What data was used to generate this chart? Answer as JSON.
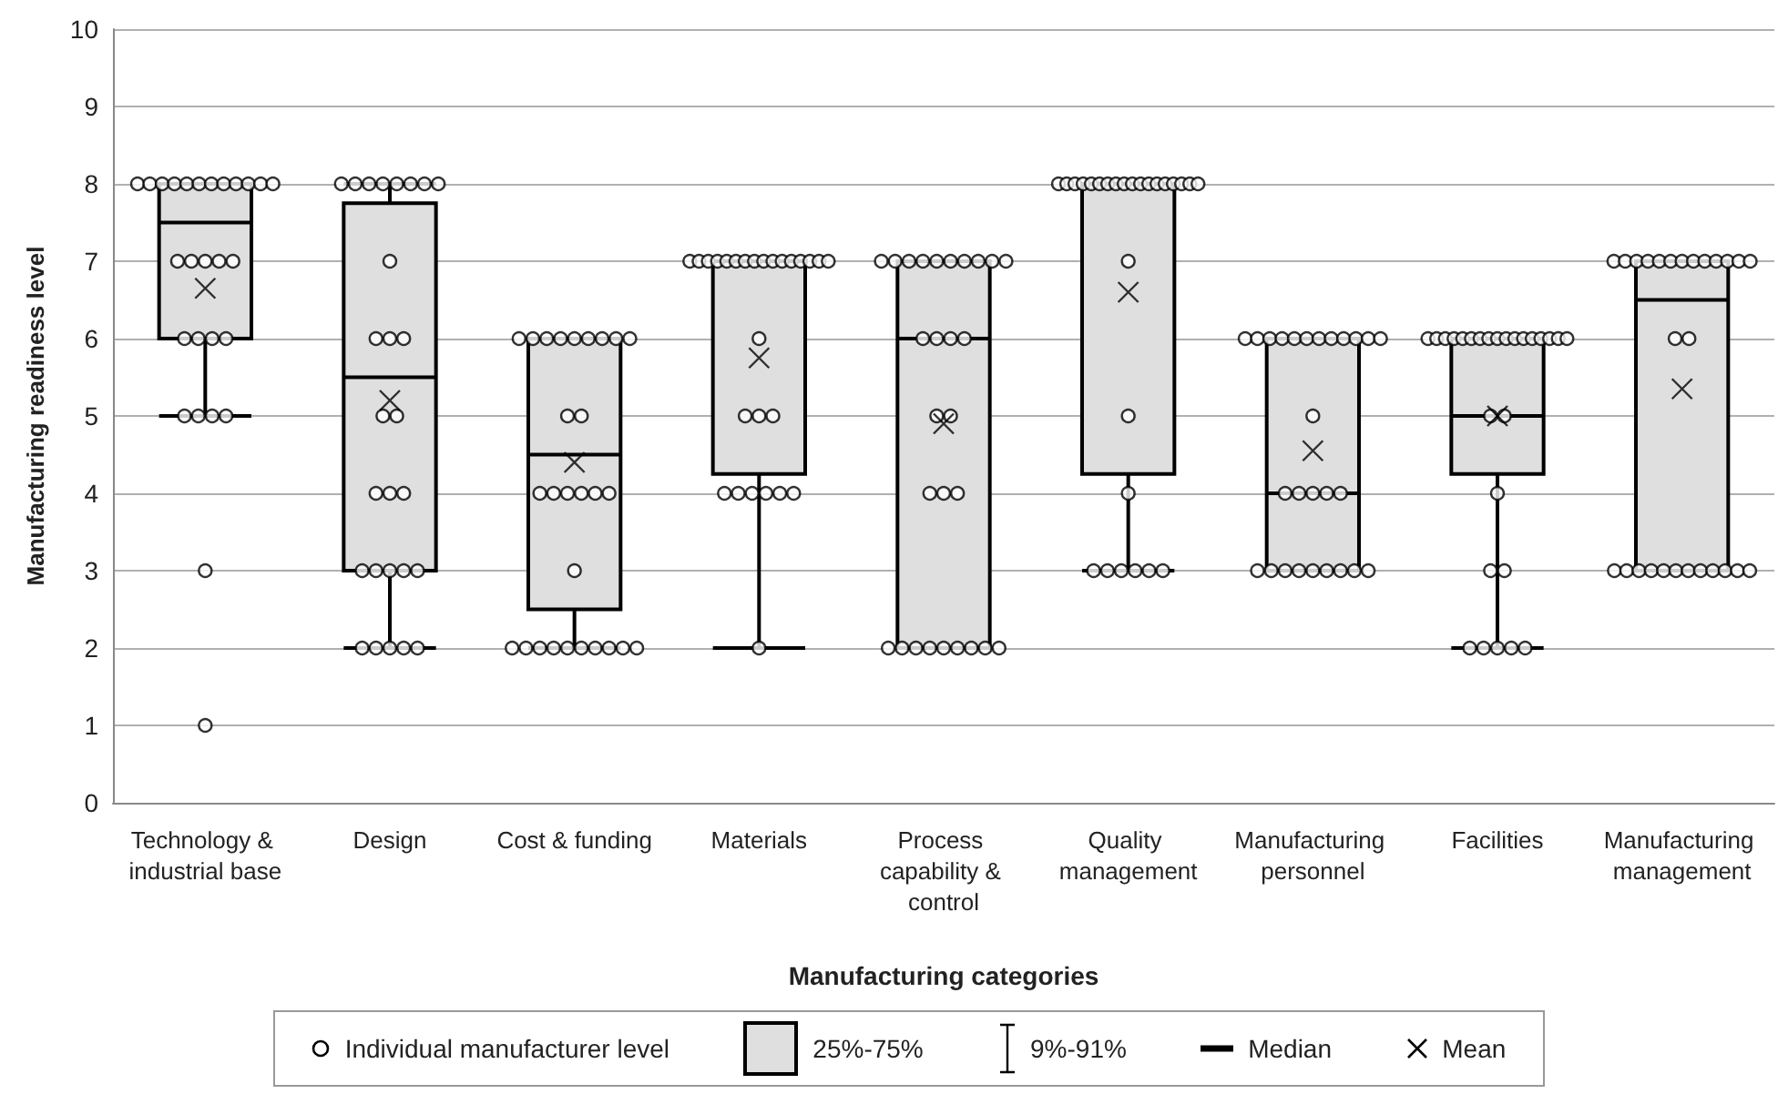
{
  "chart_data": {
    "type": "box",
    "xlabel": "Manufacturing categories",
    "ylabel": "Manufacturing readiness level",
    "categories": [
      "Technology & industrial base",
      "Design",
      "Cost & funding",
      "Materials",
      "Process capability & control",
      "Quality management",
      "Manufacturing personnel",
      "Facilities",
      "Manufacturing management"
    ],
    "ylim": [
      0,
      10
    ],
    "yticks": [
      0,
      1,
      2,
      3,
      4,
      5,
      6,
      7,
      8,
      9,
      10
    ],
    "grid": "y",
    "legend": "bottom",
    "annotations": [
      "9%-91%",
      "Median"
    ],
    "series": [
      {
        "type": "scatter",
        "name": "Individual manufacturer level",
        "color": "#ffffff",
        "marker": "circle",
        "x": [
          "Technology & industrial base",
          "Technology & industrial base",
          "Technology & industrial base",
          "Technology & industrial base",
          "Technology & industrial base",
          "Technology & industrial base",
          "Technology & industrial base",
          "Technology & industrial base",
          "Technology & industrial base",
          "Technology & industrial base",
          "Technology & industrial base",
          "Technology & industrial base",
          "Technology & industrial base",
          "Technology & industrial base",
          "Technology & industrial base",
          "Technology & industrial base",
          "Technology & industrial base",
          "Technology & industrial base",
          "Technology & industrial base",
          "Technology & industrial base",
          "Technology & industrial base",
          "Technology & industrial base",
          "Technology & industrial base",
          "Technology & industrial base",
          "Technology & industrial base",
          "Technology & industrial base",
          "Technology & industrial base",
          "Design",
          "Design",
          "Design",
          "Design",
          "Design",
          "Design",
          "Design",
          "Design",
          "Design",
          "Design",
          "Design",
          "Design",
          "Design",
          "Design",
          "Design",
          "Design",
          "Design",
          "Design",
          "Design",
          "Design",
          "Design",
          "Design",
          "Design",
          "Design",
          "Design",
          "Design",
          "Design",
          "Cost & funding",
          "Cost & funding",
          "Cost & funding",
          "Cost & funding",
          "Cost & funding",
          "Cost & funding",
          "Cost & funding",
          "Cost & funding",
          "Cost & funding",
          "Cost & funding",
          "Cost & funding",
          "Cost & funding",
          "Cost & funding",
          "Cost & funding",
          "Cost & funding",
          "Cost & funding",
          "Cost & funding",
          "Cost & funding",
          "Cost & funding",
          "Cost & funding",
          "Cost & funding",
          "Cost & funding",
          "Cost & funding",
          "Cost & funding",
          "Cost & funding",
          "Cost & funding",
          "Cost & funding",
          "Cost & funding",
          "Materials",
          "Materials",
          "Materials",
          "Materials",
          "Materials",
          "Materials",
          "Materials",
          "Materials",
          "Materials",
          "Materials",
          "Materials",
          "Materials",
          "Materials",
          "Materials",
          "Materials",
          "Materials",
          "Materials",
          "Materials",
          "Materials",
          "Materials",
          "Materials",
          "Materials",
          "Materials",
          "Materials",
          "Materials",
          "Materials",
          "Materials",
          "Process capability & control",
          "Process capability & control",
          "Process capability & control",
          "Process capability & control",
          "Process capability & control",
          "Process capability & control",
          "Process capability & control",
          "Process capability & control",
          "Process capability & control",
          "Process capability & control",
          "Process capability & control",
          "Process capability & control",
          "Process capability & control",
          "Process capability & control",
          "Process capability & control",
          "Process capability & control",
          "Process capability & control",
          "Process capability & control",
          "Process capability & control",
          "Process capability & control",
          "Process capability & control",
          "Process capability & control",
          "Process capability & control",
          "Process capability & control",
          "Process capability & control",
          "Process capability & control",
          "Process capability & control",
          "Process capability & control",
          "Quality management",
          "Quality management",
          "Quality management",
          "Quality management",
          "Quality management",
          "Quality management",
          "Quality management",
          "Quality management",
          "Quality management",
          "Quality management",
          "Quality management",
          "Quality management",
          "Quality management",
          "Quality management",
          "Quality management",
          "Quality management",
          "Quality management",
          "Quality management",
          "Quality management",
          "Quality management",
          "Quality management",
          "Quality management",
          "Quality management",
          "Quality management",
          "Quality management",
          "Quality management",
          "Quality management",
          "Manufacturing personnel",
          "Manufacturing personnel",
          "Manufacturing personnel",
          "Manufacturing personnel",
          "Manufacturing personnel",
          "Manufacturing personnel",
          "Manufacturing personnel",
          "Manufacturing personnel",
          "Manufacturing personnel",
          "Manufacturing personnel",
          "Manufacturing personnel",
          "Manufacturing personnel",
          "Manufacturing personnel",
          "Manufacturing personnel",
          "Manufacturing personnel",
          "Manufacturing personnel",
          "Manufacturing personnel",
          "Manufacturing personnel",
          "Manufacturing personnel",
          "Manufacturing personnel",
          "Manufacturing personnel",
          "Manufacturing personnel",
          "Manufacturing personnel",
          "Manufacturing personnel",
          "Manufacturing personnel",
          "Manufacturing personnel",
          "Manufacturing personnel",
          "Facilities",
          "Facilities",
          "Facilities",
          "Facilities",
          "Facilities",
          "Facilities",
          "Facilities",
          "Facilities",
          "Facilities",
          "Facilities",
          "Facilities",
          "Facilities",
          "Facilities",
          "Facilities",
          "Facilities",
          "Facilities",
          "Facilities",
          "Facilities",
          "Facilities",
          "Facilities",
          "Facilities",
          "Facilities",
          "Facilities",
          "Facilities",
          "Facilities",
          "Facilities",
          "Facilities",
          "Manufacturing management",
          "Manufacturing management",
          "Manufacturing management",
          "Manufacturing management",
          "Manufacturing management",
          "Manufacturing management",
          "Manufacturing management",
          "Manufacturing management",
          "Manufacturing management",
          "Manufacturing management",
          "Manufacturing management",
          "Manufacturing management",
          "Manufacturing management",
          "Manufacturing management",
          "Manufacturing management",
          "Manufacturing management",
          "Manufacturing management",
          "Manufacturing management",
          "Manufacturing management",
          "Manufacturing management",
          "Manufacturing management",
          "Manufacturing management",
          "Manufacturing management",
          "Manufacturing management",
          "Manufacturing management",
          "Manufacturing management",
          "Manufacturing management"
        ],
        "values": [
          8,
          8,
          8,
          8,
          8,
          8,
          8,
          8,
          8,
          8,
          8,
          8,
          7,
          7,
          7,
          7,
          7,
          6,
          6,
          6,
          6,
          5,
          5,
          5,
          5,
          3,
          1,
          8,
          8,
          8,
          8,
          8,
          8,
          8,
          8,
          7,
          6,
          6,
          6,
          5,
          5,
          4,
          4,
          4,
          3,
          3,
          3,
          3,
          3,
          2,
          2,
          2,
          2,
          2,
          6,
          6,
          6,
          6,
          6,
          6,
          6,
          6,
          6,
          5,
          5,
          4,
          4,
          4,
          4,
          4,
          4,
          3,
          2,
          2,
          2,
          2,
          2,
          2,
          2,
          2,
          2,
          2,
          7,
          7,
          7,
          7,
          7,
          7,
          7,
          7,
          7,
          7,
          7,
          7,
          7,
          7,
          7,
          7,
          6,
          5,
          5,
          5,
          4,
          4,
          4,
          4,
          4,
          4,
          2,
          7,
          7,
          7,
          7,
          7,
          7,
          7,
          7,
          7,
          7,
          6,
          6,
          6,
          6,
          5,
          5,
          4,
          4,
          4,
          2,
          2,
          2,
          2,
          2,
          2,
          2,
          2,
          2,
          8,
          8,
          8,
          8,
          8,
          8,
          8,
          8,
          8,
          8,
          8,
          8,
          8,
          8,
          8,
          8,
          8,
          8,
          7,
          5,
          4,
          3,
          3,
          3,
          3,
          3,
          3,
          6,
          6,
          6,
          6,
          6,
          6,
          6,
          6,
          6,
          6,
          6,
          6,
          5,
          4,
          4,
          4,
          4,
          4,
          3,
          3,
          3,
          3,
          3,
          3,
          3,
          3,
          3,
          6,
          6,
          6,
          6,
          6,
          6,
          6,
          6,
          6,
          6,
          6,
          6,
          6,
          6,
          6,
          6,
          6,
          5,
          5,
          4,
          3,
          3,
          2,
          2,
          2,
          2,
          2,
          7,
          7,
          7,
          7,
          7,
          7,
          7,
          7,
          7,
          7,
          7,
          7,
          7,
          6,
          6,
          3,
          3,
          3,
          3,
          3,
          3,
          3,
          3,
          3,
          3,
          3,
          3
        ]
      },
      {
        "name": "25%-75%",
        "color": "#dfdfdf",
        "boxes": [
          {
            "low": 5,
            "q1": 6,
            "median": 7.5,
            "q3": 8,
            "high": 8
          },
          {
            "low": 2,
            "q1": 3,
            "median": 5.5,
            "q3": 7.75,
            "high": 8
          },
          {
            "low": 2,
            "q1": 2.5,
            "median": 4.5,
            "q3": 6,
            "high": 6
          },
          {
            "low": 2,
            "q1": 4.25,
            "median": 7,
            "q3": 7,
            "high": 7
          },
          {
            "low": 2,
            "q1": 2,
            "median": 6,
            "q3": 7,
            "high": 7
          },
          {
            "low": 3,
            "q1": 4.25,
            "median": 8,
            "q3": 8,
            "high": 8
          },
          {
            "low": 3,
            "q1": 3,
            "median": 4,
            "q3": 6,
            "high": 6
          },
          {
            "low": 2,
            "q1": 4.25,
            "median": 5,
            "q3": 6,
            "high": 6
          },
          {
            "low": 3,
            "q1": 3,
            "median": 6.5,
            "q3": 7,
            "high": 7
          }
        ]
      },
      {
        "type": "scatter",
        "name": "Mean",
        "color": "#000000",
        "marker": "cross",
        "x": [
          "Technology & industrial base",
          "Design",
          "Cost & funding",
          "Materials",
          "Process capability & control",
          "Quality management",
          "Manufacturing personnel",
          "Facilities",
          "Manufacturing management"
        ],
        "values": [
          6.65,
          5.2,
          4.4,
          5.75,
          4.9,
          6.6,
          4.55,
          5.0,
          5.35
        ]
      }
    ]
  }
}
